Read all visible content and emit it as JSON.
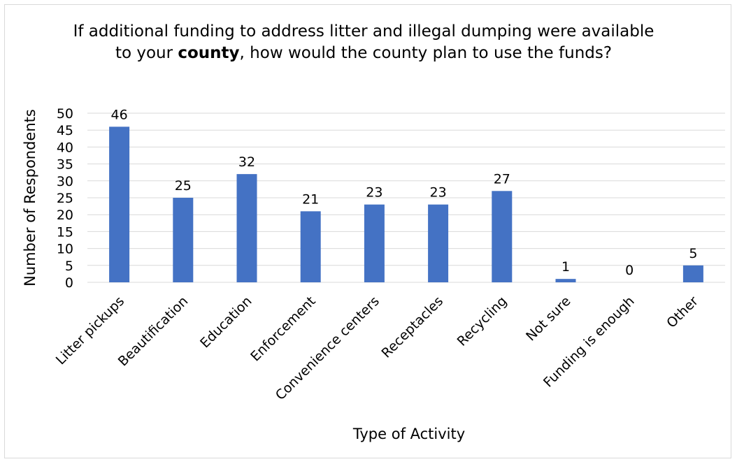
{
  "chart_data": {
    "type": "bar",
    "title_parts": [
      "If additional funding to address litter and illegal dumping were available to your ",
      "county",
      ", how would the county plan to use the funds?"
    ],
    "xlabel": "Type of Activity",
    "ylabel": "Number of Respondents",
    "categories": [
      "Litter pickups",
      "Beautification",
      "Education",
      "Enforcement",
      "Convenience centers",
      "Receptacles",
      "Recycling",
      "Not sure",
      "Funding is enough",
      "Other"
    ],
    "values": [
      46,
      25,
      32,
      21,
      23,
      23,
      27,
      1,
      0,
      5
    ],
    "data_labels": [
      "46",
      "25",
      "32",
      "21",
      "23",
      "23",
      "27",
      "1",
      "0",
      "5"
    ],
    "yticks": [
      "0",
      "5",
      "10",
      "15",
      "20",
      "25",
      "30",
      "35",
      "40",
      "45",
      "50"
    ],
    "ylim": [
      0,
      50
    ],
    "grid": true,
    "legend": "none",
    "bar_color": "#4472C4",
    "grid_color": "#d9d9d9"
  }
}
